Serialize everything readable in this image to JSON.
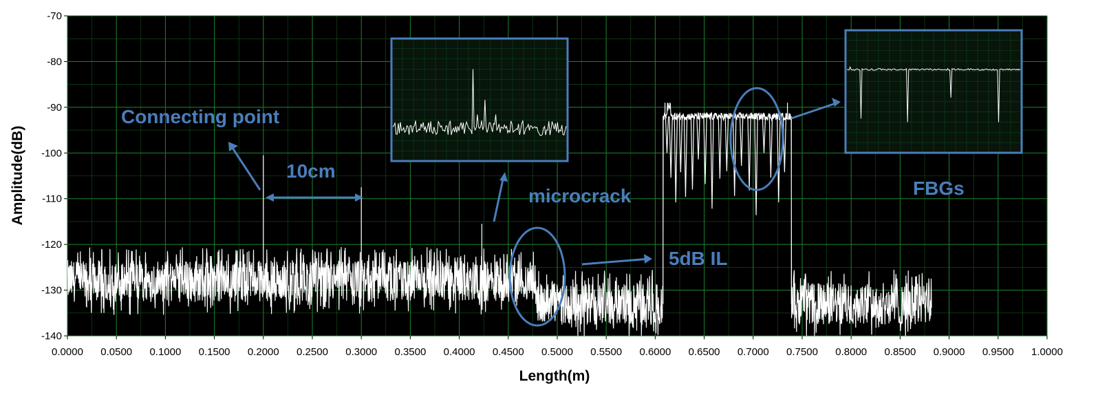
{
  "colors": {
    "plot_background": "#000000",
    "grid": "#1a7a2a",
    "trace": "#ffffff",
    "annotation": "#4a7ebb",
    "inset_border": "#4a7ebb",
    "inset_background": "#08150a"
  },
  "chart_data": {
    "type": "line",
    "title": "",
    "xlabel": "Length(m)",
    "ylabel": "Amplitude(dB)",
    "xlim": [
      0.0,
      1.0
    ],
    "ylim": [
      -140,
      -70
    ],
    "grid": true,
    "x_ticks": [
      "0.0000",
      "0.0500",
      "0.1000",
      "0.1500",
      "0.2000",
      "0.2500",
      "0.3000",
      "0.3500",
      "0.4000",
      "0.4500",
      "0.5000",
      "0.5500",
      "0.6000",
      "0.6500",
      "0.7000",
      "0.7500",
      "0.8000",
      "0.8500",
      "0.9000",
      "0.9500",
      "1.0000"
    ],
    "y_ticks": [
      "-70",
      "-80",
      "-90",
      "-100",
      "-110",
      "-120",
      "-130",
      "-140"
    ],
    "trace": {
      "x_start": 0.0,
      "x_end": 0.882,
      "segments": [
        {
          "from": 0.0,
          "to": 0.478,
          "level": -128
        },
        {
          "from": 0.478,
          "to": 0.608,
          "level": -133
        },
        {
          "from": 0.608,
          "to": 0.739,
          "level": -92
        },
        {
          "from": 0.739,
          "to": 0.882,
          "level": -133
        }
      ],
      "peaks": [
        {
          "x": 0.2,
          "y": -100.5
        },
        {
          "x": 0.3,
          "y": -107.5
        },
        {
          "x": 0.423,
          "y": -115.5
        }
      ],
      "fbg_dips": [
        0.612,
        0.616,
        0.621,
        0.626,
        0.631,
        0.638,
        0.644,
        0.651,
        0.658,
        0.666,
        0.673,
        0.681,
        0.688,
        0.696,
        0.703,
        0.711,
        0.718,
        0.726,
        0.732
      ]
    },
    "annotations": [
      {
        "text": "Connecting  point"
      },
      {
        "text": "10cm"
      },
      {
        "text": "microcrack"
      },
      {
        "text": "5dB IL"
      },
      {
        "text": "FBGs"
      }
    ]
  }
}
